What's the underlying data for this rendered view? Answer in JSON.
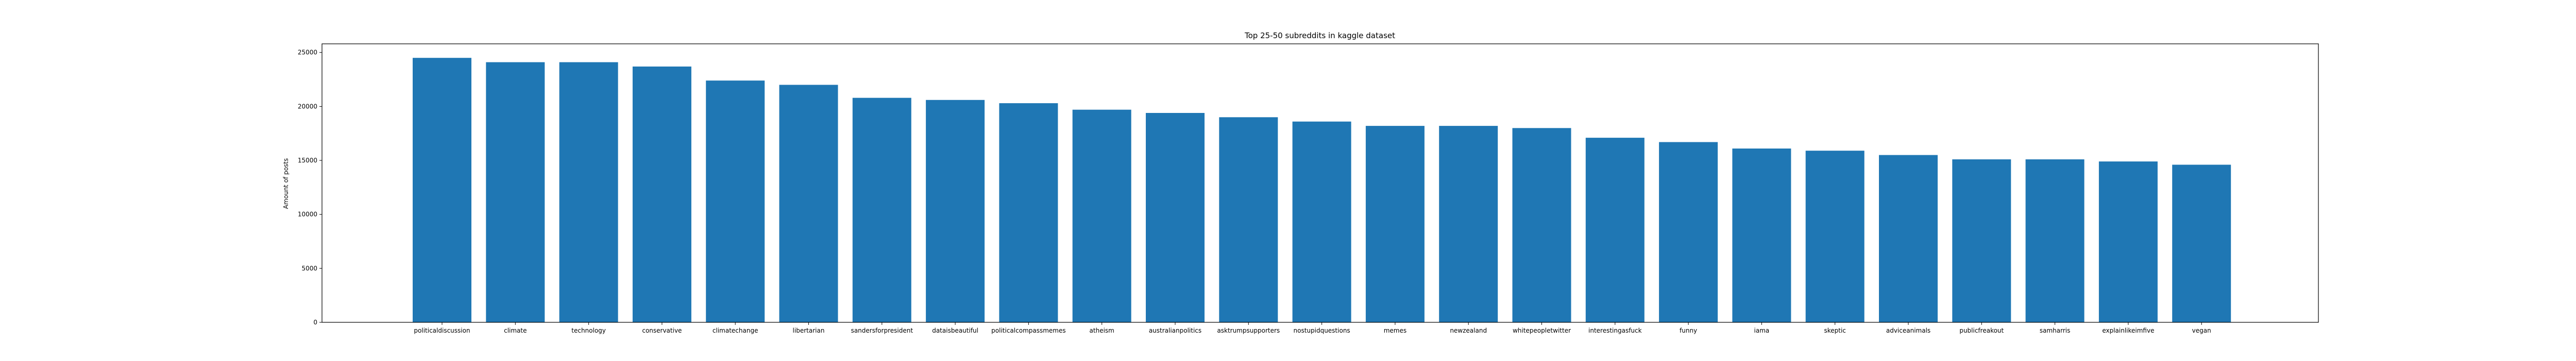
{
  "chart_data": {
    "type": "bar",
    "title": "Top 25-50 subreddits in kaggle dataset",
    "xlabel": "",
    "ylabel": "Amount of posts",
    "ylim": [
      0,
      25800
    ],
    "yticks": [
      0,
      5000,
      10000,
      15000,
      20000,
      25000
    ],
    "bar_color": "#1f77b4",
    "grid": false,
    "categories": [
      "politicaldiscussion",
      "climate",
      "technology",
      "conservative",
      "climatechange",
      "libertarian",
      "sandersforpresident",
      "dataisbeautiful",
      "politicalcompassmemes",
      "atheism",
      "australianpolitics",
      "asktrumpsupporters",
      "nostupidquestions",
      "memes",
      "newzealand",
      "whitepeopletwitter",
      "interestingasfuck",
      "funny",
      "iama",
      "skeptic",
      "adviceanimals",
      "publicfreakout",
      "samharris",
      "explainlikeimfive",
      "vegan"
    ],
    "values": [
      24500,
      24100,
      24100,
      23700,
      22400,
      22000,
      20800,
      20600,
      20300,
      19700,
      19400,
      19000,
      18600,
      18200,
      18200,
      18000,
      17100,
      16700,
      16100,
      15900,
      15500,
      15100,
      15100,
      14900,
      14600
    ]
  }
}
